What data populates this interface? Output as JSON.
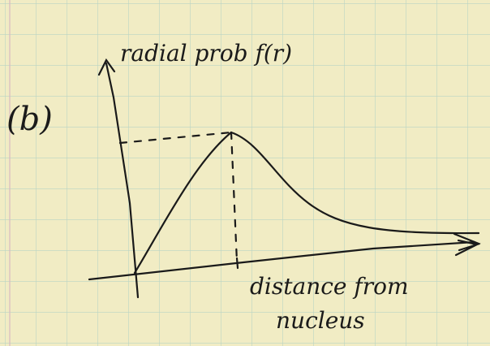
{
  "figure": {
    "label": "(b)",
    "y_axis_label": "radial prob f(r)",
    "x_axis_label": [
      "distance from",
      "nucleus"
    ]
  }
}
